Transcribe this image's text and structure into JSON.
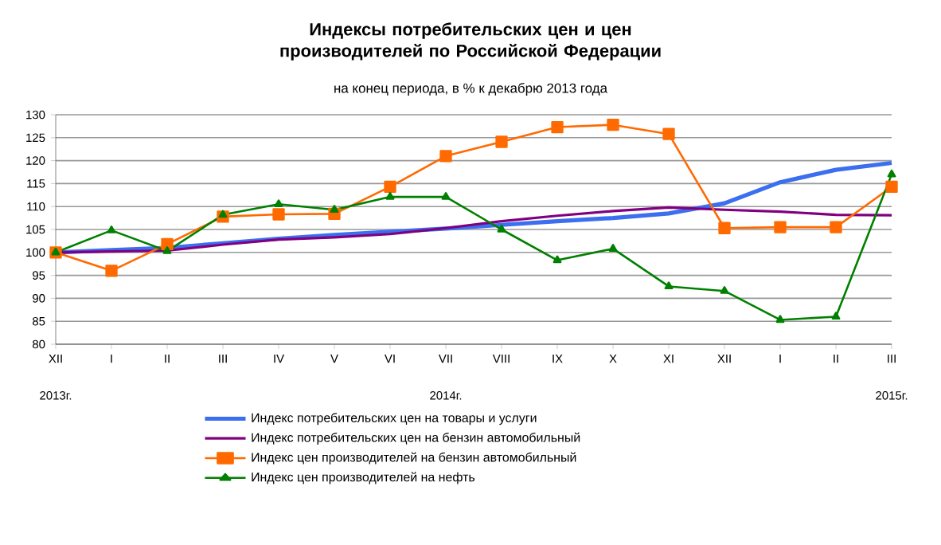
{
  "chart_data": {
    "type": "line",
    "title": "Индексы потребительских цен и цен производителей по Российской Федерации",
    "subtitle": "на конец периода, в % к декабрю 2013 года",
    "categories": [
      "XII",
      "I",
      "II",
      "III",
      "IV",
      "V",
      "VI",
      "VII",
      "VIII",
      "IX",
      "X",
      "XI",
      "XII",
      "I",
      "II",
      "III"
    ],
    "annotations": [
      "2013г.",
      "2014г.",
      "2015г."
    ],
    "ylim": [
      80,
      130
    ],
    "yticks": [
      80,
      85,
      90,
      95,
      100,
      105,
      110,
      115,
      120,
      125,
      130
    ],
    "grid": "y",
    "legend": "bottom",
    "series": [
      {
        "name": "Индекс потребительских цен на товары и услуги",
        "color": "#3c6ef0",
        "marker": "none",
        "values": [
          100,
          100.5,
          101,
          102,
          103,
          103.8,
          104.5,
          105.2,
          106,
          106.8,
          107.5,
          108.5,
          110.7,
          115.3,
          118,
          119.5
        ]
      },
      {
        "name": "Индекс потребительских цен на бензин автомобильный",
        "color": "#800080",
        "marker": "none",
        "values": [
          100,
          100.2,
          100.4,
          101.7,
          102.8,
          103.3,
          104,
          105.3,
          106.8,
          108,
          109,
          109.8,
          109.3,
          108.9,
          108.2,
          108.1
        ]
      },
      {
        "name": "Индекс цен производителей на бензин автомобильный",
        "color": "#ff6a00",
        "marker": "square",
        "values": [
          100,
          96,
          101.8,
          107.8,
          108.3,
          108.4,
          114.3,
          121,
          124.1,
          127.3,
          127.8,
          125.8,
          105.3,
          105.5,
          105.5,
          114.3
        ]
      },
      {
        "name": "Индекс цен производителей на нефть",
        "color": "#008000",
        "marker": "triangle",
        "values": [
          100,
          104.8,
          100.3,
          108.2,
          110.5,
          109.3,
          112.1,
          112.1,
          105,
          98.3,
          100.8,
          92.6,
          91.6,
          85.3,
          86,
          117
        ]
      }
    ]
  }
}
